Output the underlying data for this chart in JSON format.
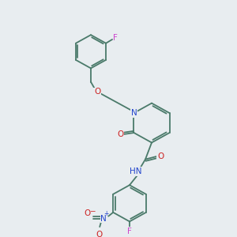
{
  "bg_color": "#e8edf0",
  "bond_color": "#4a7a6a",
  "colors": {
    "F": "#cc44cc",
    "O": "#cc2222",
    "N": "#2244cc",
    "H": "#7a9a9a",
    "C": "#4a7a6a",
    "default": "#4a7a6a"
  },
  "font_size": 7.5,
  "bond_lw": 1.3
}
